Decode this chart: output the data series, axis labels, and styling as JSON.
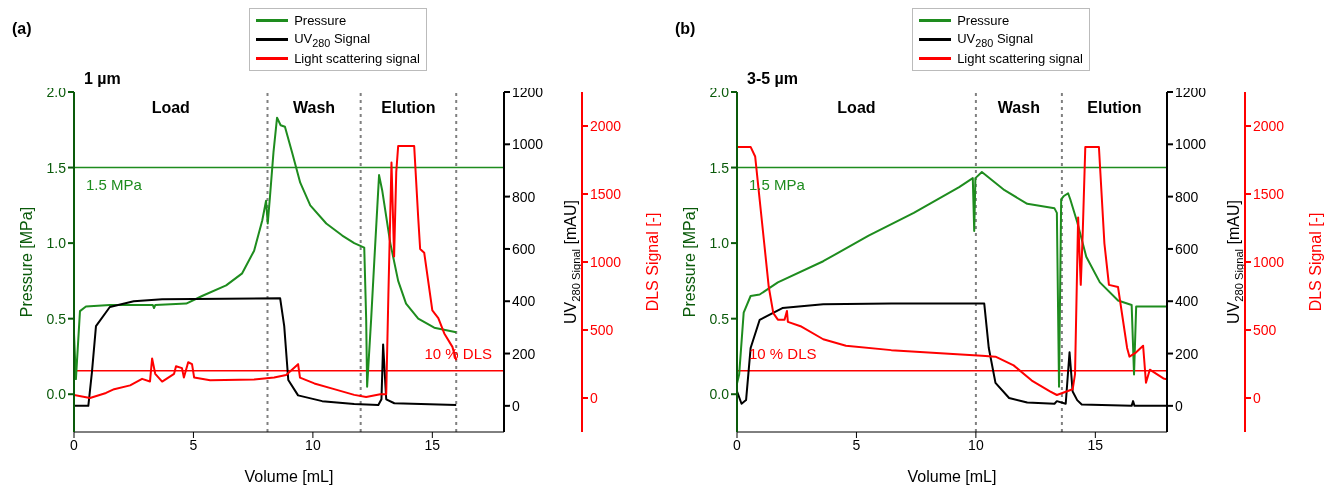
{
  "chart_data": [
    {
      "type": "line",
      "title": "(a)",
      "subtitle": "1 µm",
      "xlabel": "Volume [mL]",
      "ylabel": "Pressure [MPa]",
      "y2label": "UV$_{280 Signal}$ [mAU]",
      "y3label": "DLS Signal [-]",
      "legend": "top",
      "marker": "none",
      "xlim": [
        0,
        18
      ],
      "xticks": [
        0,
        5,
        10,
        15
      ],
      "ylim": [
        -0.25,
        2.0
      ],
      "yticks": [
        {
          "value": 0,
          "label": "0.0"
        },
        {
          "value": 0.5,
          "label": "0.5"
        },
        {
          "value": 1,
          "label": "1.0"
        },
        {
          "value": 1.5,
          "label": "1.5"
        },
        {
          "value": 2,
          "label": "2.0"
        }
      ],
      "y2lim": [
        -100,
        1200
      ],
      "y2ticks": [
        0,
        200,
        400,
        600,
        800,
        1000,
        1200
      ],
      "y3lim": [
        -250,
        2250
      ],
      "y3ticks": [
        0,
        500,
        1000,
        1500,
        2000
      ],
      "series": [
        {
          "name": "Pressure",
          "color": "#1e8c1e",
          "axis": "y",
          "x": [
            0,
            0.08,
            0.25,
            0.5,
            1.5,
            3.3,
            3.35,
            3.4,
            4.7,
            5.36,
            6.37,
            7.04,
            7.54,
            7.88,
            8.04,
            8.11,
            8.2,
            8.35,
            8.5,
            8.65,
            8.83,
            9.13,
            9.47,
            9.89,
            10.56,
            11.23,
            11.73,
            12.15,
            12.23,
            12.27,
            12.44,
            12.57,
            12.77,
            12.9,
            13.24,
            13.57,
            13.9,
            14.41,
            15.08,
            16.0
          ],
          "values": [
            0.4,
            0.1,
            0.55,
            0.58,
            0.59,
            0.59,
            0.57,
            0.59,
            0.6,
            0.65,
            0.72,
            0.8,
            0.95,
            1.15,
            1.28,
            1.13,
            1.3,
            1.6,
            1.83,
            1.78,
            1.77,
            1.6,
            1.4,
            1.25,
            1.13,
            1.05,
            1.0,
            0.97,
            0.5,
            0.05,
            0.5,
            0.88,
            1.45,
            1.35,
            1.0,
            0.75,
            0.6,
            0.5,
            0.44,
            0.41
          ]
        },
        {
          "name": "UV$_{280}$ Signal",
          "color": "#000000",
          "axis": "y2",
          "x": [
            0,
            0.6,
            0.75,
            0.92,
            1.5,
            2.5,
            3.69,
            8.63,
            8.8,
            8.97,
            9.38,
            10.39,
            11.73,
            12.74,
            12.87,
            12.94,
            13.07,
            13.41,
            16.0
          ],
          "values": [
            0,
            0,
            128,
            305,
            378,
            400,
            408,
            411,
            305,
            99,
            40,
            18,
            7,
            3,
            25,
            235,
            25,
            10,
            3
          ]
        },
        {
          "name": "Light scattering signal",
          "color": "#ff0000",
          "axis": "y3",
          "x": [
            0,
            0.67,
            1.34,
            1.68,
            2.35,
            2.85,
            3.18,
            3.27,
            3.4,
            3.69,
            4.19,
            4.27,
            4.52,
            4.6,
            4.78,
            4.94,
            5.03,
            5.7,
            7.54,
            8.38,
            8.88,
            9.38,
            9.46,
            10.06,
            10.89,
            11.73,
            12.23,
            12.82,
            13.07,
            13.16,
            13.29,
            13.4,
            13.49,
            13.57,
            14.24,
            14.41,
            14.49,
            14.66,
            15.0,
            15.25,
            15.5,
            15.84,
            16.0
          ],
          "values": [
            23,
            0,
            37,
            65,
            93,
            141,
            121,
            291,
            178,
            121,
            178,
            234,
            220,
            150,
            263,
            249,
            150,
            130,
            136,
            150,
            169,
            249,
            150,
            107,
            65,
            23,
            8,
            28,
            28,
            757,
            1732,
            1040,
            1661,
            1853,
            1853,
            1322,
            1096,
            1068,
            644,
            588,
            475,
            376,
            277
          ]
        }
      ],
      "ref_lines": [
        {
          "axis": "y",
          "value": 1.5,
          "label": "1.5 MPa",
          "color": "#1e8c1e"
        },
        {
          "axis": "y3",
          "value": 200,
          "label": "10 % DLS",
          "color": "#ff0000"
        },
        {
          "axis": "x",
          "value": 8.1,
          "color": "#808080",
          "line_style": "dotted"
        },
        {
          "axis": "x",
          "value": 12,
          "color": "#808080",
          "line_style": "dotted"
        },
        {
          "axis": "x",
          "value": 16,
          "color": "#808080",
          "line_style": "dotted"
        }
      ],
      "annotations": [
        "Load",
        "Wash",
        "Elution"
      ]
    },
    {
      "type": "line",
      "title": "(b)",
      "subtitle": "3-5 µm",
      "xlabel": "Volume [mL]",
      "ylabel": "Pressure [MPa]",
      "y2label": "UV$_{280 Signal}$ [mAU]",
      "y3label": "DLS Signal [-]",
      "legend": "top",
      "marker": "none",
      "xlim": [
        0,
        18
      ],
      "xticks": [
        0,
        5,
        10,
        15
      ],
      "ylim": [
        -0.25,
        2.0
      ],
      "yticks": [
        {
          "value": 0,
          "label": "0.0"
        },
        {
          "value": 0.5,
          "label": "0.5"
        },
        {
          "value": 1,
          "label": "1.0"
        },
        {
          "value": 1.5,
          "label": "1.5"
        },
        {
          "value": 2,
          "label": "2.0"
        }
      ],
      "y2lim": [
        -100,
        1200
      ],
      "y2ticks": [
        0,
        200,
        400,
        600,
        800,
        1000,
        1200
      ],
      "y3lim": [
        -250,
        2250
      ],
      "y3ticks": [
        0,
        500,
        1000,
        1500,
        2000
      ],
      "series": [
        {
          "name": "Pressure",
          "color": "#1e8c1e",
          "axis": "y",
          "x": [
            0,
            0.09,
            0.28,
            0.57,
            0.95,
            1.71,
            3.61,
            5.51,
            7.4,
            9.3,
            9.87,
            9.93,
            9.98,
            10.25,
            11.2,
            12.15,
            13.29,
            13.39,
            13.48,
            13.57,
            13.67,
            13.86,
            13.95,
            14.24,
            14.62,
            15.19,
            15.95,
            16.52,
            16.62,
            16.71,
            18.0
          ],
          "values": [
            0.07,
            0.13,
            0.54,
            0.65,
            0.66,
            0.74,
            0.88,
            1.05,
            1.2,
            1.37,
            1.43,
            1.08,
            1.43,
            1.47,
            1.35,
            1.26,
            1.23,
            1.2,
            0.05,
            1.29,
            1.31,
            1.33,
            1.29,
            1.14,
            0.91,
            0.74,
            0.62,
            0.59,
            0.13,
            0.58,
            0.58
          ]
        },
        {
          "name": "UV$_{280}$ Signal",
          "color": "#000000",
          "axis": "y2",
          "x": [
            0,
            0.19,
            0.38,
            0.57,
            0.95,
            1.9,
            3.61,
            6.46,
            10.35,
            10.54,
            10.82,
            11.39,
            12.15,
            13.29,
            13.39,
            13.76,
            13.92,
            14.05,
            14.24,
            14.43,
            16.52,
            16.58,
            16.64,
            18.0
          ],
          "values": [
            55,
            8,
            22,
            221,
            329,
            374,
            388,
            391,
            391,
            221,
            88,
            30,
            13,
            8,
            18,
            8,
            205,
            55,
            22,
            5,
            0,
            18,
            0,
            0
          ]
        },
        {
          "name": "Light scattering signal",
          "color": "#ff0000",
          "axis": "y3",
          "x": [
            0,
            0.57,
            0.76,
            0.95,
            1.14,
            1.33,
            1.52,
            1.71,
            1.99,
            2.09,
            2.13,
            2.66,
            3.61,
            4.56,
            6.46,
            8.35,
            10.25,
            10.82,
            11.58,
            12.34,
            13.1,
            13.39,
            14.05,
            14.15,
            14.28,
            14.39,
            14.47,
            14.58,
            15.15,
            15.38,
            15.57,
            15.95,
            16.14,
            16.33,
            16.43,
            16.71,
            17.0,
            17.12,
            17.28,
            17.85,
            18.0
          ],
          "values": [
            1846,
            1846,
            1776,
            1456,
            1136,
            816,
            624,
            576,
            576,
            640,
            560,
            528,
            432,
            384,
            352,
            330,
            310,
            304,
            240,
            128,
            48,
            22,
            64,
            176,
            1328,
            832,
            1200,
            1846,
            1846,
            1136,
            832,
            816,
            592,
            368,
            304,
            336,
            384,
            112,
            208,
            144,
            138
          ]
        }
      ],
      "ref_lines": [
        {
          "axis": "y",
          "value": 1.5,
          "label": "1.5 MPa",
          "color": "#1e8c1e"
        },
        {
          "axis": "y3",
          "value": 200,
          "label": "10 % DLS",
          "color": "#ff0000"
        },
        {
          "axis": "x",
          "value": 10,
          "color": "#808080",
          "line_style": "dotted"
        },
        {
          "axis": "x",
          "value": 13.6,
          "color": "#808080",
          "line_style": "dotted"
        }
      ],
      "annotations": [
        "Load",
        "Wash",
        "Elution"
      ]
    }
  ]
}
